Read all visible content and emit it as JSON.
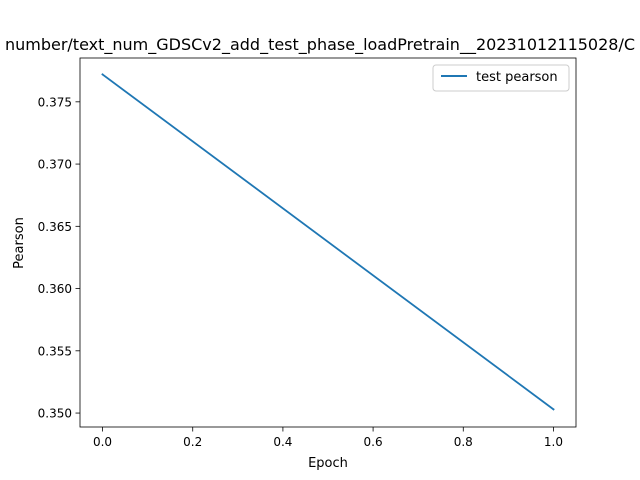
{
  "chart_data": {
    "type": "line",
    "title": "number/text_num_GDSCv2_add_test_phase_loadPretrain__20231012115028/C",
    "xlabel": "Epoch",
    "ylabel": "Pearson",
    "xlim": [
      -0.05,
      1.05
    ],
    "ylim": [
      0.34888,
      0.37852
    ],
    "x_ticks": [
      0.0,
      0.2,
      0.4,
      0.6,
      0.8,
      1.0
    ],
    "x_tick_labels": [
      "0.0",
      "0.2",
      "0.4",
      "0.6",
      "0.8",
      "1.0"
    ],
    "y_ticks": [
      0.35,
      0.355,
      0.36,
      0.365,
      0.37,
      0.375
    ],
    "y_tick_labels": [
      "0.350",
      "0.355",
      "0.360",
      "0.365",
      "0.370",
      "0.375"
    ],
    "grid": false,
    "legend_position": "top-right",
    "series": [
      {
        "name": "test pearson",
        "color": "#1f77b4",
        "x": [
          0.0,
          1.0
        ],
        "y": [
          0.3772,
          0.3503
        ]
      }
    ]
  }
}
